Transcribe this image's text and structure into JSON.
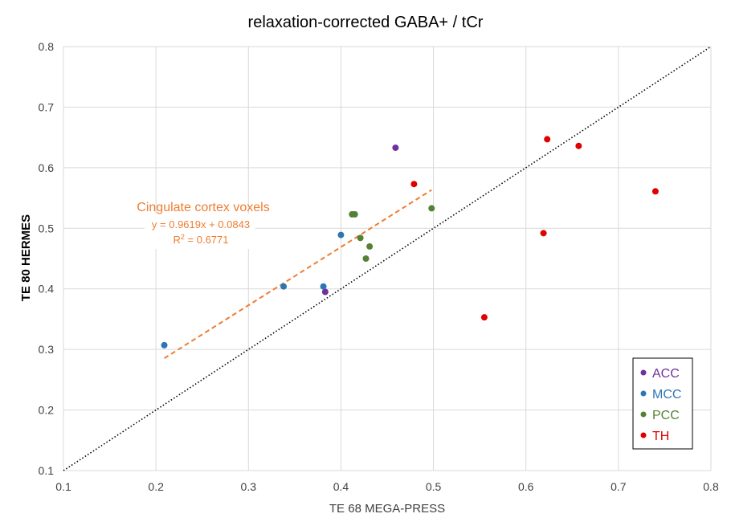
{
  "chart_data": {
    "type": "scatter",
    "title": "relaxation-corrected GABA+ / tCr",
    "xlabel": "TE 68 MEGA-PRESS",
    "ylabel": "TE 80 HERMES",
    "xlim": [
      0.1,
      0.8
    ],
    "ylim": [
      0.1,
      0.8
    ],
    "x_ticks": [
      "0.1",
      "0.2",
      "0.3",
      "0.4",
      "0.5",
      "0.6",
      "0.7",
      "0.8"
    ],
    "y_ticks": [
      "0.1",
      "0.2",
      "0.3",
      "0.4",
      "0.5",
      "0.6",
      "0.7",
      "0.8"
    ],
    "grid": true,
    "legend_position": "bottom-right",
    "series": [
      {
        "name": "ACC",
        "color": "#7030a0",
        "points": [
          [
            0.459,
            0.633
          ],
          [
            0.383,
            0.395
          ]
        ]
      },
      {
        "name": "MCC",
        "color": "#2e75b6",
        "points": [
          [
            0.209,
            0.307
          ],
          [
            0.338,
            0.404
          ],
          [
            0.381,
            0.404
          ],
          [
            0.4,
            0.489
          ]
        ]
      },
      {
        "name": "PCC",
        "color": "#548235",
        "points": [
          [
            0.412,
            0.523
          ],
          [
            0.415,
            0.523
          ],
          [
            0.421,
            0.484
          ],
          [
            0.427,
            0.45
          ],
          [
            0.431,
            0.47
          ],
          [
            0.498,
            0.533
          ]
        ]
      },
      {
        "name": "TH",
        "color": "#e00000",
        "points": [
          [
            0.479,
            0.573
          ],
          [
            0.555,
            0.353
          ],
          [
            0.619,
            0.492
          ],
          [
            0.623,
            0.647
          ],
          [
            0.657,
            0.636
          ],
          [
            0.74,
            0.561
          ]
        ]
      }
    ],
    "identity_line": {
      "from": [
        0.1,
        0.1
      ],
      "to": [
        0.8,
        0.8
      ],
      "color": "#000000",
      "style": "dotted"
    },
    "trendline": {
      "label": "Cingulate cortex voxels",
      "equation": "y = 0.9619x + 0.0843",
      "r2_label": "R",
      "r2_sup": "2",
      "r2_value": " = 0.6771",
      "slope": 0.9619,
      "intercept": 0.0843,
      "x_range": [
        0.209,
        0.498
      ],
      "color": "#ed7d31",
      "style": "dashed"
    }
  }
}
